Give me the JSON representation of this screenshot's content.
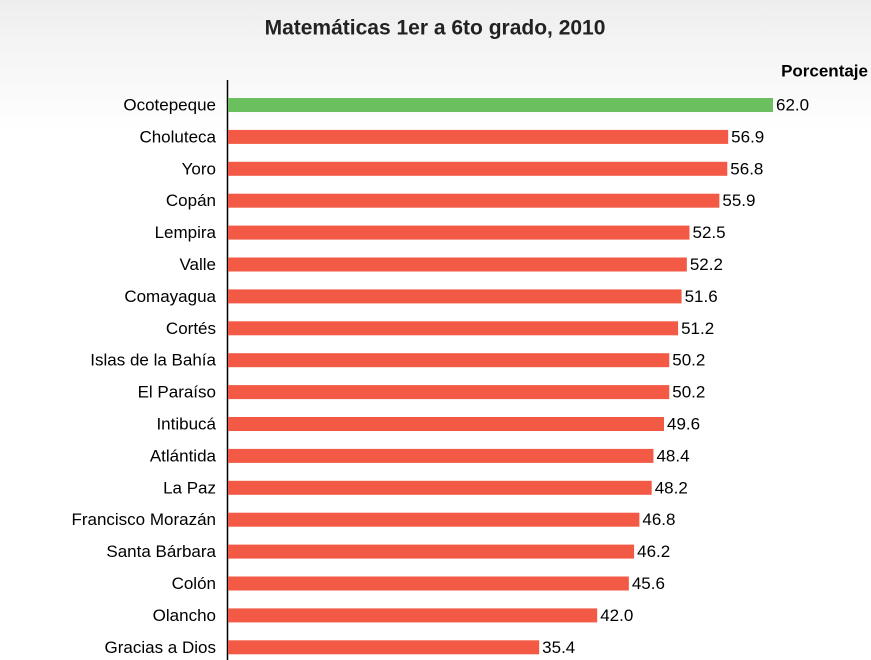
{
  "chart_data": {
    "type": "hbar",
    "title": "Matemáticas 1er a 6to grado, 2010",
    "value_axis_label": "Porcentaje",
    "categories": [
      "Ocotepeque",
      "Choluteca",
      "Yoro",
      "Copán",
      "Lempira",
      "Valle",
      "Comayagua",
      "Cortés",
      "Islas de la Bahía",
      "El Paraíso",
      "Intibucá",
      "Atlántida",
      "La Paz",
      "Francisco Morazán",
      "Santa Bárbara",
      "Colón",
      "Olancho",
      "Gracias a Dios"
    ],
    "values": [
      62.0,
      56.9,
      56.8,
      55.9,
      52.5,
      52.2,
      51.6,
      51.2,
      50.2,
      50.2,
      49.6,
      48.4,
      48.2,
      46.8,
      46.2,
      45.6,
      42.0,
      35.4
    ],
    "value_labels": [
      "62.0",
      "56.9",
      "56.8",
      "55.9",
      "52.5",
      "52.2",
      "51.6",
      "51.2",
      "50.2",
      "50.2",
      "49.6",
      "48.4",
      "48.2",
      "46.8",
      "46.2",
      "45.6",
      "42.0",
      "35.4"
    ],
    "colors": [
      "#6cbf5f",
      "#f25a45",
      "#f25a45",
      "#f25a45",
      "#f25a45",
      "#f25a45",
      "#f25a45",
      "#f25a45",
      "#f25a45",
      "#f25a45",
      "#f25a45",
      "#f25a45",
      "#f25a45",
      "#f25a45",
      "#f25a45",
      "#f25a45",
      "#f25a45",
      "#f25a45"
    ],
    "xlim": [
      0,
      62
    ]
  }
}
